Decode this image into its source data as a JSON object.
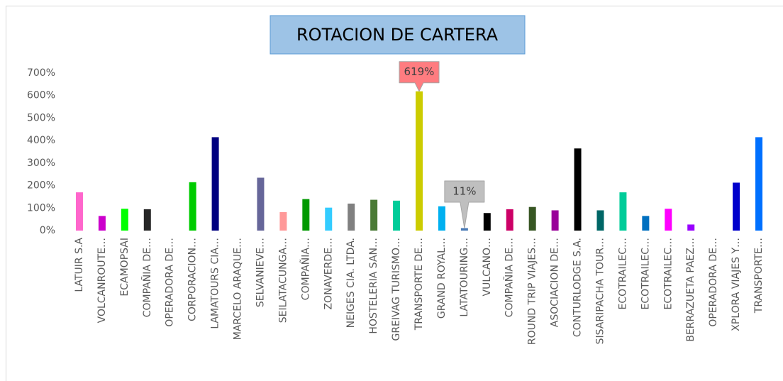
{
  "chart_data": {
    "type": "bar",
    "title": "ROTACION DE CARTERA",
    "categories": [
      "LATUIR S.A",
      "VOLCANROUTE…",
      "ECAMOPSAI",
      "COMPAÑIA DE…",
      "OPERADORA DE…",
      "CORPORACION…",
      "LAMATOURS CIA…",
      "MARCELO ARAQUE…",
      "SELVANIEVE…",
      "SEILATACUNGA…",
      "COMPAÑIA…",
      "ZONAVERDE…",
      "NEIGES CIA. LTDA.",
      "HOSTELERIA SAN…",
      "GREIVAG TURISMO…",
      "TRANSPORTE DE…",
      "GRAND ROYAL…",
      "LATATOURING…",
      "VULCANO…",
      "COMPAÑIA DE…",
      "ROUND TRIP VIAJES…",
      "ASOCIACION DE…",
      "CONTURLODGE S.A.",
      "SISARIPACHA TOUR…",
      "ECOTRAILEC…",
      "ECOTRAILEC…",
      "ECOTRAILEC…",
      "BERRAZUETA PAEZ…",
      "OPERADORA DE…",
      "XPLORA VIAJES Y…",
      "TRANSPORTE…"
    ],
    "values": [
      170,
      65,
      97,
      95,
      0,
      215,
      415,
      0,
      235,
      82,
      140,
      102,
      120,
      137,
      133,
      619,
      108,
      11,
      78,
      95,
      105,
      90,
      365,
      90,
      170,
      65,
      97,
      27,
      0,
      213,
      415
    ],
    "value_labels": [
      null,
      null,
      null,
      null,
      null,
      null,
      null,
      null,
      null,
      null,
      null,
      null,
      null,
      null,
      null,
      "619%",
      null,
      "11%",
      null,
      null,
      null,
      null,
      null,
      null,
      null,
      null,
      null,
      null,
      null,
      null,
      null
    ],
    "colors": [
      "#ff66cc",
      "#cc00cc",
      "#00ff00",
      "#262626",
      "#000000",
      "#00cc00",
      "#000080",
      "#000000",
      "#666699",
      "#ff9999",
      "#009900",
      "#33ccff",
      "#808080",
      "#4a7a35",
      "#00cc99",
      "#cccc00",
      "#00b0f0",
      "#4a7ab5",
      "#000000",
      "#cc0066",
      "#375623",
      "#990099",
      "#000000",
      "#006666",
      "#00cc99",
      "#0070c0",
      "#ff00ff",
      "#9900ff",
      "#000000",
      "#0000cc",
      "#0070ff"
    ],
    "label_colors": {
      "TRANSPORTE DE…": "#ff7c80",
      "LATATOURING…": "#bfbfbf"
    },
    "ylim": [
      0,
      700
    ],
    "yticks": [
      {
        "value": 0,
        "label": "0%"
      },
      {
        "value": 100,
        "label": "100%"
      },
      {
        "value": 200,
        "label": "200%"
      },
      {
        "value": 300,
        "label": "300%"
      },
      {
        "value": 400,
        "label": "400%"
      },
      {
        "value": 500,
        "label": "500%"
      },
      {
        "value": 600,
        "label": "600%"
      },
      {
        "value": 700,
        "label": "700%"
      }
    ],
    "grid": false
  }
}
